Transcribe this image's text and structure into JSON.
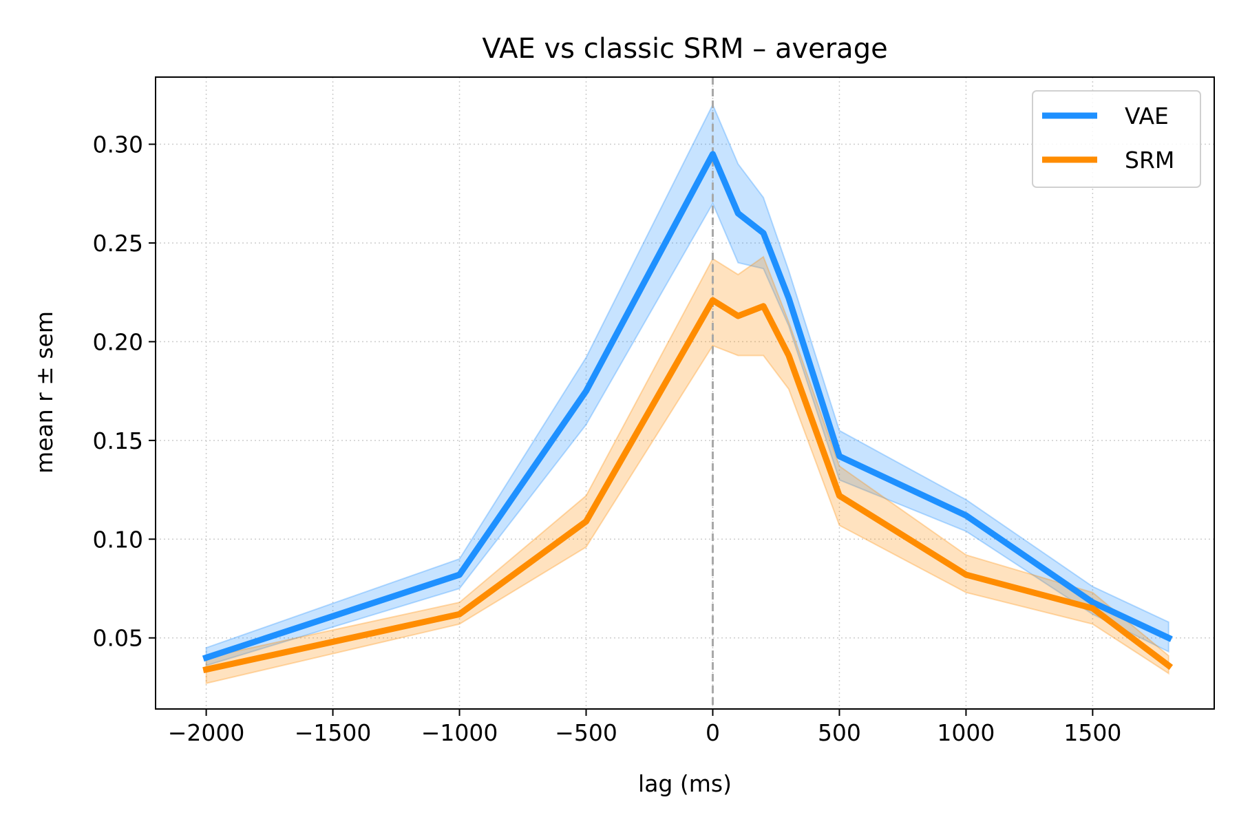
{
  "chart_data": {
    "type": "line",
    "title": "VAE vs classic SRM – average",
    "xlabel": "lag (ms)",
    "ylabel": "mean r ± sem",
    "xlim": [
      -2200,
      1980
    ],
    "ylim": [
      0.014,
      0.334
    ],
    "x_ticks": [
      -2000,
      -1500,
      -1000,
      -500,
      0,
      500,
      1000,
      1500
    ],
    "x_tick_labels": [
      "−2000",
      "−1500",
      "−1000",
      "−500",
      "0",
      "500",
      "1000",
      "1500"
    ],
    "y_ticks": [
      0.05,
      0.1,
      0.15,
      0.2,
      0.25,
      0.3
    ],
    "y_tick_labels": [
      "0.05",
      "0.10",
      "0.15",
      "0.20",
      "0.25",
      "0.30"
    ],
    "grid": true,
    "legend_position": "top-right",
    "reference_line_x": 0,
    "x": [
      -2000,
      -1000,
      -500,
      0,
      100,
      200,
      300,
      500,
      1000,
      1500,
      1800
    ],
    "series": [
      {
        "name": "VAE",
        "color": "#1e90ff",
        "values": [
          0.04,
          0.082,
          0.175,
          0.295,
          0.265,
          0.255,
          0.222,
          0.142,
          0.112,
          0.068,
          0.05
        ],
        "lower": [
          0.036,
          0.075,
          0.158,
          0.27,
          0.24,
          0.237,
          0.208,
          0.13,
          0.104,
          0.062,
          0.043
        ],
        "upper": [
          0.045,
          0.09,
          0.192,
          0.32,
          0.29,
          0.273,
          0.236,
          0.155,
          0.12,
          0.076,
          0.058
        ]
      },
      {
        "name": "SRM",
        "color": "#ff8c00",
        "values": [
          0.034,
          0.062,
          0.109,
          0.221,
          0.213,
          0.218,
          0.193,
          0.122,
          0.082,
          0.065,
          0.036
        ],
        "lower": [
          0.027,
          0.057,
          0.096,
          0.198,
          0.193,
          0.193,
          0.176,
          0.107,
          0.073,
          0.057,
          0.032
        ],
        "upper": [
          0.04,
          0.068,
          0.122,
          0.242,
          0.234,
          0.243,
          0.21,
          0.137,
          0.092,
          0.073,
          0.041
        ]
      }
    ]
  }
}
